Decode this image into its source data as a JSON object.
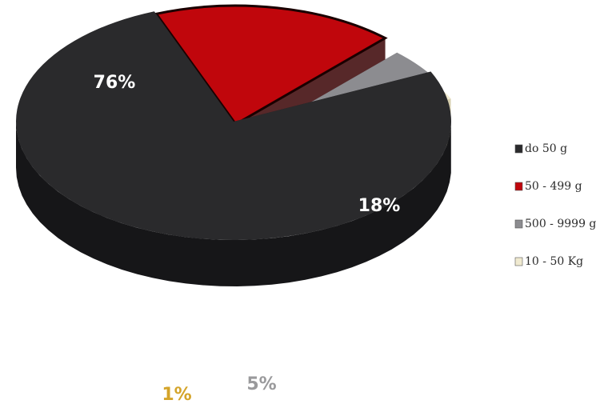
{
  "chart_data": {
    "type": "pie",
    "style": "3d-exploded",
    "slices": [
      {
        "label": "do 50 g",
        "value": 76,
        "display": "76%",
        "color": "#2a2a2c",
        "side_color": "#161618",
        "label_color": "#ffffff"
      },
      {
        "label": "50 - 499 g",
        "value": 18,
        "display": "18%",
        "color": "#c0060c",
        "side_color": "#3a0204",
        "label_color": "#ffffff"
      },
      {
        "label": "500 - 9999 g",
        "value": 5,
        "display": "5%",
        "color": "#8c8c90",
        "side_color": "#55555a",
        "label_color": "#9a9a9c"
      },
      {
        "label": "10 - 50 Kg",
        "value": 1,
        "display": "1%",
        "color": "#f0ead0",
        "side_color": "#cfc6a0",
        "label_color": "#d4a42a"
      }
    ],
    "legend": {
      "position": "right"
    }
  }
}
